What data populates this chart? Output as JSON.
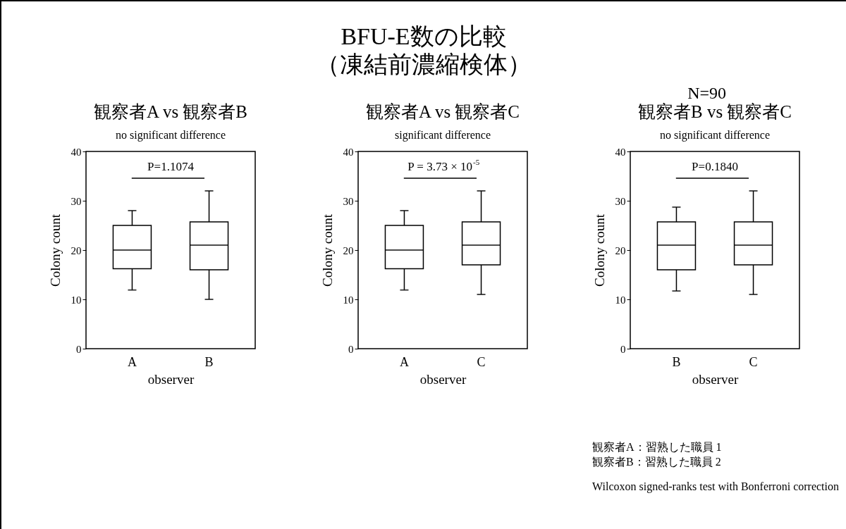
{
  "chart_data": [
    {
      "type": "other",
      "title": "BFU-E数の比較",
      "subtitle": "（凍結前濃縮検体）",
      "annotations": [
        "N=90"
      ]
    },
    {
      "type": "box",
      "title": "観察者A vs 観察者B",
      "subtitle": "no significant difference",
      "xlabel": "observer",
      "ylabel": "Colony count",
      "categories": [
        "A",
        "B"
      ],
      "boxes": [
        {
          "low": 11.9,
          "q1": 16.2,
          "median": 20,
          "q3": 25,
          "high": 28
        },
        {
          "low": 10,
          "q1": 16,
          "median": 21,
          "q3": 25.7,
          "high": 32
        }
      ],
      "ylim": [
        0,
        40
      ],
      "yticks": [
        0,
        10,
        20,
        30,
        40
      ],
      "grid": false,
      "annotations": [
        "P=1.1074"
      ]
    },
    {
      "type": "box",
      "title": "観察者A vs 観察者C",
      "subtitle": "significant difference",
      "xlabel": "observer",
      "ylabel": "Colony count",
      "categories": [
        "A",
        "C"
      ],
      "boxes": [
        {
          "low": 11.9,
          "q1": 16.2,
          "median": 20,
          "q3": 25,
          "high": 28
        },
        {
          "low": 11,
          "q1": 17,
          "median": 21,
          "q3": 25.7,
          "high": 32
        }
      ],
      "ylim": [
        0,
        40
      ],
      "yticks": [
        0,
        10,
        20,
        30,
        40
      ],
      "grid": false,
      "annotations": [
        "P = 3.73 × 10$^{-5}$"
      ]
    },
    {
      "type": "box",
      "title": "観察者B vs 観察者C",
      "subtitle": "no significant difference",
      "xlabel": "observer",
      "ylabel": "Colony count",
      "categories": [
        "B",
        "C"
      ],
      "boxes": [
        {
          "low": 11.7,
          "q1": 16,
          "median": 21,
          "q3": 25.7,
          "high": 28.7
        },
        {
          "low": 11,
          "q1": 17,
          "median": 21,
          "q3": 25.7,
          "high": 32
        }
      ],
      "ylim": [
        0,
        40
      ],
      "yticks": [
        0,
        10,
        20,
        30,
        40
      ],
      "grid": false,
      "annotations": [
        "P=0.1840"
      ]
    },
    {
      "type": "other",
      "annotations": [
        "観察者A：習熟した職員 1",
        "観察者B：習熟した職員 2",
        "Wilcoxon signed-ranks test with Bonferroni correction"
      ]
    }
  ]
}
